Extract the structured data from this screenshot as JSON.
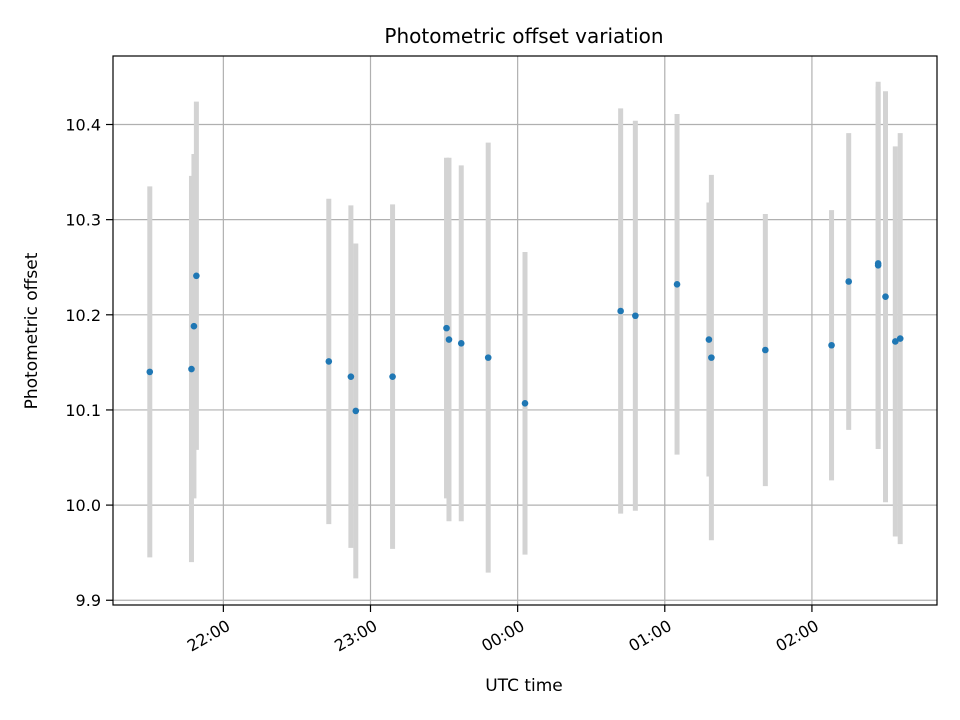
{
  "chart_data": {
    "type": "scatter",
    "title": "Photometric offset variation",
    "xlabel": "UTC time",
    "ylabel": "Photometric offset",
    "x_unit": "UTC time (HH:MM), observations spanning 21:30 to 02:40",
    "xlim": [
      "21:15",
      "02:51"
    ],
    "ylim": [
      9.895,
      10.472
    ],
    "xticks": [
      "22:00",
      "23:00",
      "00:00",
      "01:00",
      "02:00"
    ],
    "yticks": [
      "9.9",
      "10.0",
      "10.1",
      "10.2",
      "10.3",
      "10.4"
    ],
    "grid": true,
    "marker_color": "#1f77b4",
    "errorbar_color": "#d3d3d3",
    "points": [
      {
        "x": "21:30",
        "y": 10.14,
        "err": 0.195
      },
      {
        "x": "21:47",
        "y": 10.143,
        "err": 0.203
      },
      {
        "x": "21:48",
        "y": 10.188,
        "err": 0.181
      },
      {
        "x": "21:49",
        "y": 10.241,
        "err": 0.183
      },
      {
        "x": "22:43",
        "y": 10.151,
        "err": 0.171
      },
      {
        "x": "22:52",
        "y": 10.135,
        "err": 0.18
      },
      {
        "x": "22:54",
        "y": 10.099,
        "err": 0.176
      },
      {
        "x": "23:09",
        "y": 10.135,
        "err": 0.181
      },
      {
        "x": "23:31",
        "y": 10.186,
        "err": 0.179
      },
      {
        "x": "23:32",
        "y": 10.174,
        "err": 0.191
      },
      {
        "x": "23:37",
        "y": 10.17,
        "err": 0.187
      },
      {
        "x": "23:48",
        "y": 10.155,
        "err": 0.226
      },
      {
        "x": "00:03",
        "y": 10.107,
        "err": 0.159
      },
      {
        "x": "00:42",
        "y": 10.204,
        "err": 0.213
      },
      {
        "x": "00:48",
        "y": 10.199,
        "err": 0.205
      },
      {
        "x": "01:05",
        "y": 10.232,
        "err": 0.179
      },
      {
        "x": "01:18",
        "y": 10.174,
        "err": 0.144
      },
      {
        "x": "01:19",
        "y": 10.155,
        "err": 0.192
      },
      {
        "x": "01:41",
        "y": 10.163,
        "err": 0.143
      },
      {
        "x": "02:08",
        "y": 10.168,
        "err": 0.142
      },
      {
        "x": "02:15",
        "y": 10.235,
        "err": 0.156
      },
      {
        "x": "02:27",
        "y": 10.252,
        "err": 0.193
      },
      {
        "x": "02:27",
        "y": 10.254,
        "err": 0.186
      },
      {
        "x": "02:30",
        "y": 10.219,
        "err": 0.216
      },
      {
        "x": "02:34",
        "y": 10.172,
        "err": 0.205
      },
      {
        "x": "02:36",
        "y": 10.175,
        "err": 0.216
      }
    ]
  }
}
